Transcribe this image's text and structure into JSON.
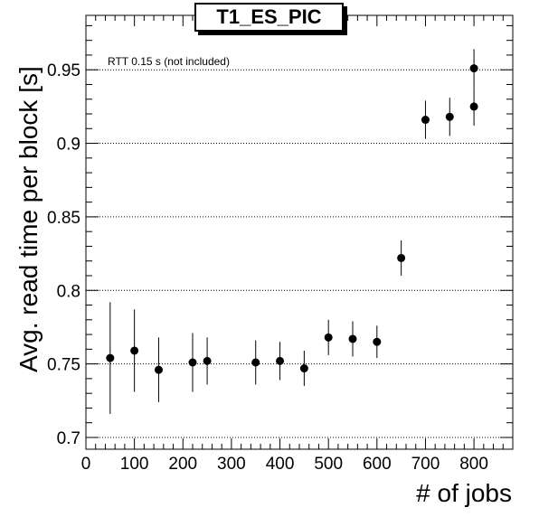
{
  "chart_data": {
    "type": "scatter",
    "title": "T1_ES_PIC",
    "annotation": "RTT 0.15 s (not included)",
    "xlabel": "# of jobs",
    "ylabel": "Avg. read time per block [s]",
    "xlim": [
      0,
      880
    ],
    "ylim": [
      0.692,
      0.987
    ],
    "x_ticks": [
      0,
      100,
      200,
      300,
      400,
      500,
      600,
      700,
      800
    ],
    "y_ticks": [
      0.7,
      0.75,
      0.8,
      0.85,
      0.9,
      0.95
    ],
    "grid": "horizontal dotted",
    "series": [
      {
        "points": [
          {
            "x": 50,
            "y": 0.754,
            "err": 0.038
          },
          {
            "x": 100,
            "y": 0.759,
            "err": 0.028
          },
          {
            "x": 150,
            "y": 0.746,
            "err": 0.022
          },
          {
            "x": 220,
            "y": 0.751,
            "err": 0.02
          },
          {
            "x": 250,
            "y": 0.752,
            "err": 0.016
          },
          {
            "x": 350,
            "y": 0.751,
            "err": 0.015
          },
          {
            "x": 400,
            "y": 0.752,
            "err": 0.013
          },
          {
            "x": 450,
            "y": 0.747,
            "err": 0.012
          },
          {
            "x": 500,
            "y": 0.768,
            "err": 0.012
          },
          {
            "x": 550,
            "y": 0.767,
            "err": 0.012
          },
          {
            "x": 600,
            "y": 0.765,
            "err": 0.011
          },
          {
            "x": 650,
            "y": 0.822,
            "err": 0.012
          },
          {
            "x": 700,
            "y": 0.916,
            "err": 0.013
          },
          {
            "x": 750,
            "y": 0.918,
            "err": 0.013
          },
          {
            "x": 800,
            "y": 0.925,
            "err": 0.013
          },
          {
            "x": 800,
            "y": 0.951,
            "err": 0.013
          }
        ]
      }
    ]
  }
}
